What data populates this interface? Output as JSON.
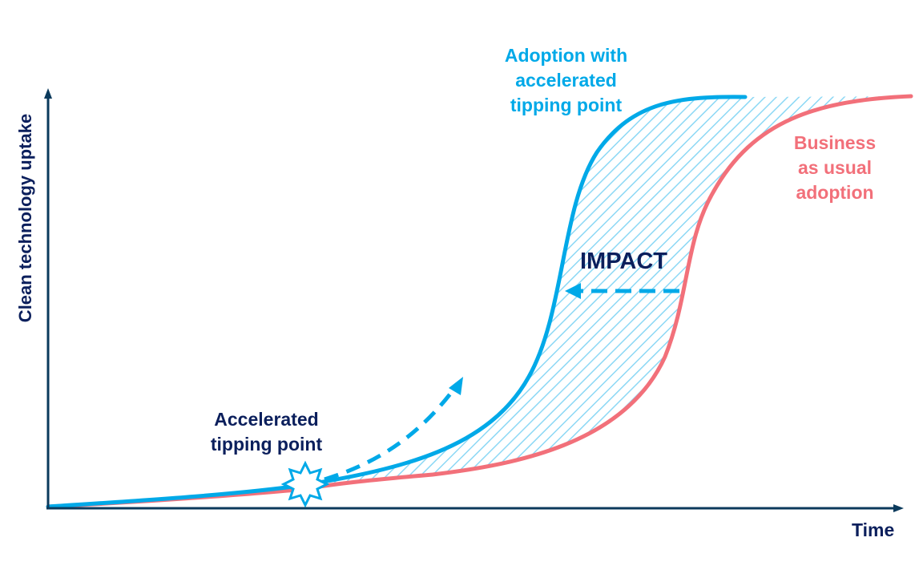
{
  "diagram": {
    "axes": {
      "y_label": "Clean technology uptake",
      "x_label": "Time"
    },
    "curves": {
      "accelerated": {
        "label_lines": [
          "Adoption with",
          "accelerated",
          "tipping point"
        ],
        "color": "#00a9e8"
      },
      "business_as_usual": {
        "label_lines": [
          "Business",
          "as usual",
          "adoption"
        ],
        "color": "#f2707a"
      }
    },
    "tipping_point": {
      "label_lines": [
        "Accelerated",
        "tipping point"
      ]
    },
    "impact": {
      "label": "IMPACT"
    },
    "colors": {
      "axis": "#0b3a5c",
      "navy_text": "#0b1f5c",
      "hatch": "#00a9e8"
    },
    "icons": [
      "starburst-icon",
      "arrow-icon"
    ]
  }
}
